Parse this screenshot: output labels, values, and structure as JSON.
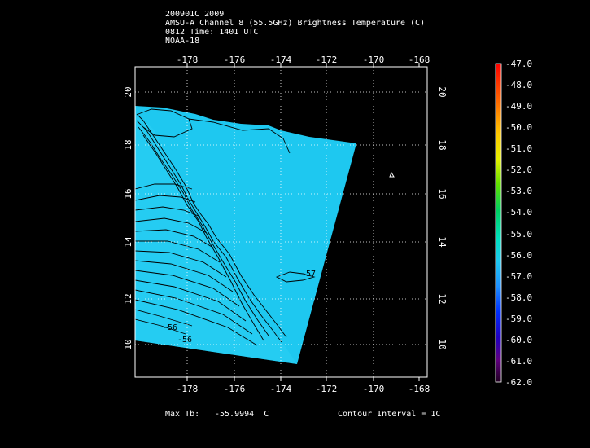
{
  "header": {
    "line1": "200901C 2009",
    "line2": "AMSU-A Channel 8 (55.5GHz) Brightness Temperature (C)",
    "line3": "0812 Time: 1401 UTC",
    "line4": "NOAA-18"
  },
  "map": {
    "lon_ticks": [
      "-178",
      "-176",
      "-174",
      "-172",
      "-170",
      "-168"
    ],
    "lat_ticks": [
      "10",
      "12",
      "14",
      "16",
      "18",
      "20"
    ],
    "contour_labels": [
      "-57",
      "-56",
      "-56"
    ],
    "swath_color": "#1ec8f0",
    "background": "#000000"
  },
  "colorbar": {
    "labels": [
      "-47.0",
      "-48.0",
      "-49.0",
      "-50.0",
      "-51.0",
      "-52.0",
      "-53.0",
      "-54.0",
      "-55.0",
      "-56.0",
      "-57.0",
      "-58.0",
      "-59.0",
      "-60.0",
      "-61.0",
      "-62.0"
    ]
  },
  "footer": {
    "max_label": "Max Tb:",
    "max_value": "-55.9994  C",
    "contour_interval": "Contour Interval = 1C"
  }
}
